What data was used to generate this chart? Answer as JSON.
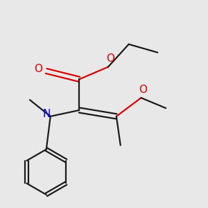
{
  "bg_color": "#e8e8e8",
  "bond_color": "#1a1a1a",
  "N_color": "#0000ee",
  "O_color": "#dd0000",
  "line_width": 1.6,
  "font_size": 10,
  "figsize": [
    3.0,
    3.0
  ],
  "dpi": 100,
  "xlim": [
    0,
    1
  ],
  "ylim": [
    0,
    1
  ]
}
